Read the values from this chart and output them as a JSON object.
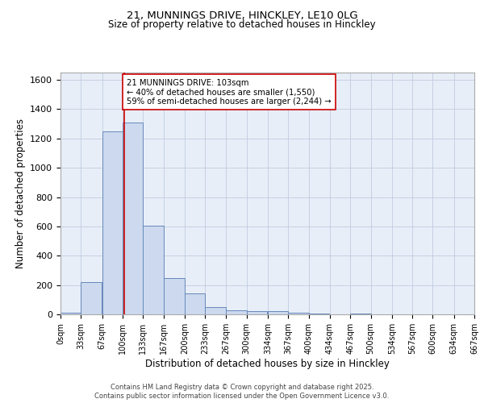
{
  "title_line1": "21, MUNNINGS DRIVE, HINCKLEY, LE10 0LG",
  "title_line2": "Size of property relative to detached houses in Hinckley",
  "xlabel": "Distribution of detached houses by size in Hinckley",
  "ylabel": "Number of detached properties",
  "footnote1": "Contains HM Land Registry data © Crown copyright and database right 2025.",
  "footnote2": "Contains public sector information licensed under the Open Government Licence v3.0.",
  "bin_edges": [
    0,
    33,
    67,
    100,
    133,
    167,
    200,
    233,
    267,
    300,
    334,
    367,
    400,
    434,
    467,
    500,
    534,
    567,
    600,
    634,
    667
  ],
  "bin_counts": [
    10,
    220,
    1250,
    1310,
    605,
    245,
    145,
    50,
    30,
    22,
    20,
    10,
    8,
    0,
    5,
    0,
    0,
    0,
    0,
    0
  ],
  "bar_facecolor": "#ccd9ee",
  "bar_edgecolor": "#6688bb",
  "vline_x": 103,
  "vline_color": "#cc0000",
  "annotation_box_text": "21 MUNNINGS DRIVE: 103sqm\n← 40% of detached houses are smaller (1,550)\n59% of semi-detached houses are larger (2,244) →",
  "annotation_box_color": "#cc0000",
  "ylim": [
    0,
    1650
  ],
  "xlim": [
    0,
    667
  ],
  "grid_color": "#c0cce0",
  "background_color": "#e8eef8",
  "tick_labels": [
    "0sqm",
    "33sqm",
    "67sqm",
    "100sqm",
    "133sqm",
    "167sqm",
    "200sqm",
    "233sqm",
    "267sqm",
    "300sqm",
    "334sqm",
    "367sqm",
    "400sqm",
    "434sqm",
    "467sqm",
    "500sqm",
    "534sqm",
    "567sqm",
    "600sqm",
    "634sqm",
    "667sqm"
  ],
  "tick_positions": [
    0,
    33,
    67,
    100,
    133,
    167,
    200,
    233,
    267,
    300,
    334,
    367,
    400,
    434,
    467,
    500,
    534,
    567,
    600,
    634,
    667
  ],
  "ytick_labels": [
    "0",
    "200",
    "400",
    "600",
    "800",
    "1000",
    "1200",
    "1400",
    "1600"
  ],
  "ytick_positions": [
    0,
    200,
    400,
    600,
    800,
    1000,
    1200,
    1400,
    1600
  ]
}
